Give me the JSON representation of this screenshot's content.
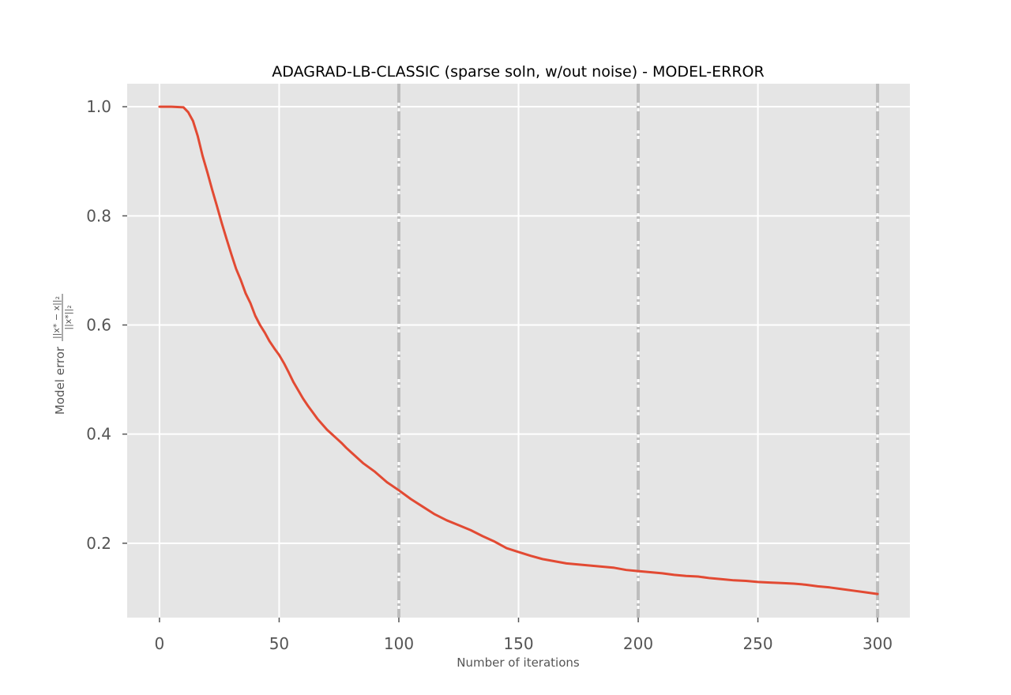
{
  "chart_data": {
    "type": "line",
    "title": "ADAGRAD-LB-CLASSIC (sparse soln, w/out noise) - MODEL-ERROR",
    "xlabel": "Number of iterations",
    "ylabel": {
      "prefix": "Model error",
      "numerator": "||x* − x||₂",
      "denominator": "||x*||₂"
    },
    "xlim": [
      -13.5,
      313.5
    ],
    "ylim": [
      0.0637,
      1.0422
    ],
    "xticks": [
      0,
      50,
      100,
      150,
      200,
      250,
      300
    ],
    "xtick_labels": [
      "0",
      "50",
      "100",
      "150",
      "200",
      "250",
      "300"
    ],
    "yticks": [
      0.2,
      0.4,
      0.6,
      0.8,
      1.0
    ],
    "ytick_labels": [
      "0.2",
      "0.4",
      "0.6",
      "0.8",
      "1.0"
    ],
    "grid": true,
    "vlines": [
      100,
      200,
      300
    ],
    "colors": {
      "line": "#E24A33",
      "axes_bg": "#E5E5E5",
      "grid": "#FFFFFF",
      "vline": "#BDBDBD"
    },
    "series": [
      {
        "x": [
          0,
          5,
          10,
          12,
          14,
          16,
          18,
          20,
          22,
          24,
          26,
          28,
          30,
          32,
          34,
          36,
          38,
          40,
          42,
          44,
          46,
          48,
          50,
          52,
          54,
          56,
          58,
          60,
          62,
          64,
          66,
          68,
          70,
          72,
          74,
          76,
          78,
          80,
          85,
          90,
          95,
          100,
          105,
          110,
          115,
          120,
          125,
          130,
          135,
          140,
          145,
          150,
          155,
          160,
          165,
          170,
          175,
          180,
          185,
          190,
          195,
          200,
          205,
          210,
          215,
          220,
          225,
          230,
          235,
          240,
          245,
          250,
          255,
          260,
          265,
          270,
          275,
          280,
          285,
          290,
          295,
          300
        ],
        "y": [
          1.0,
          1.0,
          0.999,
          0.99,
          0.974,
          0.946,
          0.91,
          0.88,
          0.848,
          0.818,
          0.787,
          0.758,
          0.73,
          0.703,
          0.682,
          0.658,
          0.64,
          0.617,
          0.6,
          0.586,
          0.57,
          0.557,
          0.545,
          0.53,
          0.513,
          0.495,
          0.48,
          0.465,
          0.452,
          0.44,
          0.428,
          0.418,
          0.408,
          0.4,
          0.392,
          0.384,
          0.375,
          0.367,
          0.347,
          0.331,
          0.312,
          0.297,
          0.281,
          0.267,
          0.253,
          0.242,
          0.233,
          0.224,
          0.213,
          0.203,
          0.191,
          0.184,
          0.177,
          0.171,
          0.167,
          0.163,
          0.161,
          0.159,
          0.157,
          0.155,
          0.151,
          0.149,
          0.147,
          0.145,
          0.142,
          0.14,
          0.139,
          0.136,
          0.134,
          0.132,
          0.131,
          0.129,
          0.128,
          0.127,
          0.126,
          0.124,
          0.121,
          0.119,
          0.116,
          0.113,
          0.11,
          0.107
        ]
      }
    ]
  }
}
